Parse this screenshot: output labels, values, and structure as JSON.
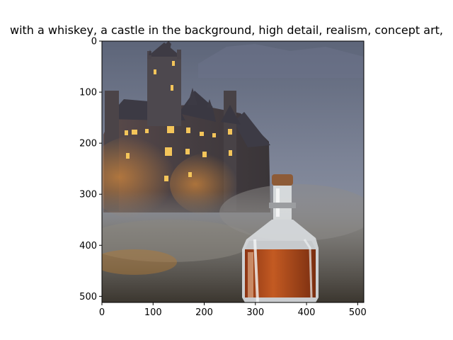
{
  "chart_data": {
    "type": "image",
    "title": "with a whiskey,  a castle in the background, high detail,  realism, concept art,",
    "xlabel": "",
    "ylabel": "",
    "xlim": [
      0,
      512
    ],
    "ylim": [
      512,
      0
    ],
    "x_ticks": [
      0,
      100,
      200,
      300,
      400,
      500
    ],
    "y_ticks": [
      0,
      100,
      200,
      300,
      400,
      500
    ],
    "grid": false
  },
  "colors": {
    "sky_top": "#6b7489",
    "sky_bottom": "#8f96a6",
    "castle_stone": "#4a4448",
    "window_glow": "#f4c55a",
    "fog": "#6f6b66",
    "whiskey": "#b8501e",
    "glass": "#d9dde0"
  }
}
